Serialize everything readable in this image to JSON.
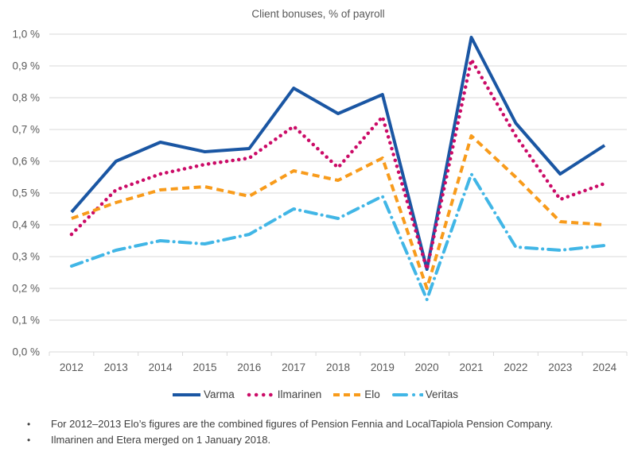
{
  "title": "Client bonuses, % of payroll",
  "colors": {
    "grid": "#d9d9d9",
    "axis_text": "#595959",
    "title_text": "#595959",
    "footnote_text": "#3f3f3f",
    "varma_blue": "#1a56a3",
    "ilmarinen_magenta": "#cb0b67",
    "elo_orange": "#f89b1b",
    "veritas_cyan": "#41b6e6"
  },
  "chart_data": {
    "type": "line",
    "title": "Client bonuses, % of payroll",
    "xlabel": "",
    "ylabel": "% of payroll",
    "x": [
      2012,
      2013,
      2014,
      2015,
      2016,
      2017,
      2018,
      2019,
      2020,
      2021,
      2022,
      2023,
      2024
    ],
    "series": [
      {
        "name": "Varma",
        "color": "#1a56a3",
        "style": "solid",
        "width": 4,
        "values": [
          0.44,
          0.6,
          0.66,
          0.63,
          0.64,
          0.83,
          0.75,
          0.81,
          0.26,
          0.99,
          0.72,
          0.56,
          0.65
        ]
      },
      {
        "name": "Ilmarinen",
        "color": "#cb0b67",
        "style": "dotted",
        "width": 4.5,
        "values": [
          0.37,
          0.51,
          0.56,
          0.59,
          0.61,
          0.71,
          0.58,
          0.74,
          0.26,
          0.92,
          0.68,
          0.48,
          0.53
        ]
      },
      {
        "name": "Elo",
        "color": "#f89b1b",
        "style": "dashed",
        "width": 4,
        "values": [
          0.42,
          0.47,
          0.51,
          0.52,
          0.49,
          0.57,
          0.54,
          0.61,
          0.2,
          0.68,
          0.55,
          0.41,
          0.4
        ]
      },
      {
        "name": "Veritas",
        "color": "#41b6e6",
        "style": "dash-dot",
        "width": 4,
        "values": [
          0.27,
          0.32,
          0.35,
          0.34,
          0.37,
          0.45,
          0.42,
          0.49,
          0.165,
          0.56,
          0.33,
          0.32,
          0.335
        ]
      }
    ],
    "ylim": [
      0.0,
      1.0
    ],
    "y_tick_step": 0.1,
    "y_tick_labels": [
      "0,0 %",
      "0,1 %",
      "0,2 %",
      "0,3 %",
      "0,4 %",
      "0,5 %",
      "0,6 %",
      "0,7 %",
      "0,8 %",
      "0,9 %",
      "1,0 %"
    ],
    "grid": true,
    "legend_position": "bottom"
  },
  "footnotes": [
    "For 2012–2013 Elo’s figures are the combined figures of Pension Fennia and LocalTapiola Pension Company.",
    "Ilmarinen and Etera merged on 1 January 2018."
  ]
}
